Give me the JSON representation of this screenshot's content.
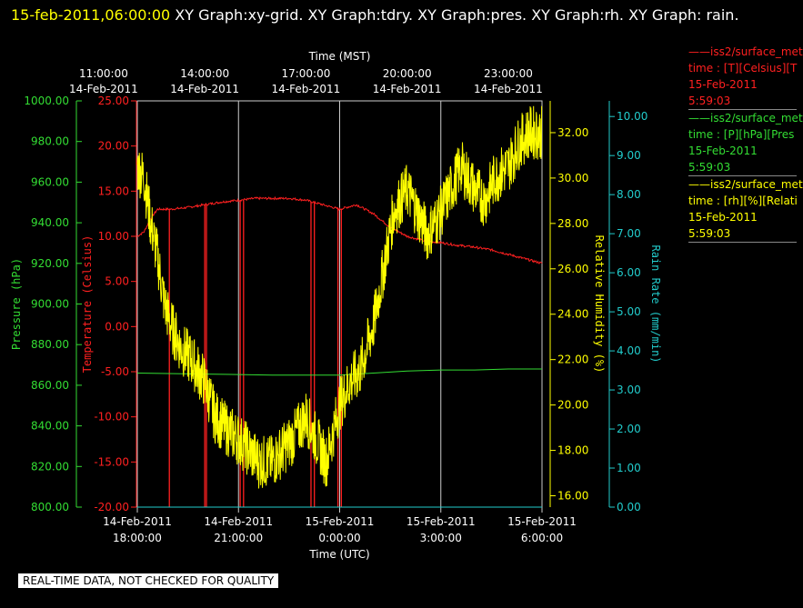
{
  "header": {
    "timestamp": "15-feb-2011,06:00:00",
    "title": "  XY Graph:xy-grid.  XY Graph:tdry.  XY Graph:pres.  XY Graph:rh.  XY Graph: rain."
  },
  "legend": [
    {
      "line1": "——iss2/surface_met",
      "line2": "time : [T][Celsius][T",
      "line3": "15-Feb-2011",
      "line4": "5:59:03",
      "color": "#ff2020"
    },
    {
      "line1": "——iss2/surface_met",
      "line2": "time : [P][hPa][Pres",
      "line3": "15-Feb-2011",
      "line4": "5:59:03",
      "color": "#33dd33"
    },
    {
      "line1": "——iss2/surface_met",
      "line2": "time : [rh][%][Relati",
      "line3": "15-Feb-2011",
      "line4": "5:59:03",
      "color": "#ffff00"
    }
  ],
  "quality_note": "REAL-TIME DATA, NOT CHECKED FOR QUALITY",
  "colors": {
    "temperature": "#ff2020",
    "pressure": "#33dd33",
    "humidity": "#ffff00",
    "rain": "#22cccc",
    "grid": "#cccccc",
    "axis_text": "#ffffff"
  },
  "chart_data": {
    "type": "line",
    "top_axis": {
      "title": "Time (MST)",
      "ticks": [
        {
          "t": 17,
          "time": "11:00:00",
          "date": "14-Feb-2011"
        },
        {
          "t": 20,
          "time": "14:00:00",
          "date": "14-Feb-2011"
        },
        {
          "t": 23,
          "time": "17:00:00",
          "date": "14-Feb-2011"
        },
        {
          "t": 26,
          "time": "20:00:00",
          "date": "14-Feb-2011"
        },
        {
          "t": 29,
          "time": "23:00:00",
          "date": "14-Feb-2011"
        }
      ]
    },
    "bottom_axis": {
      "title": "Time (UTC)",
      "ticks": [
        {
          "t": 18,
          "date": "14-Feb-2011",
          "time": "18:00:00"
        },
        {
          "t": 21,
          "date": "14-Feb-2011",
          "time": "21:00:00"
        },
        {
          "t": 24,
          "date": "15-Feb-2011",
          "time": "0:00:00"
        },
        {
          "t": 27,
          "date": "15-Feb-2011",
          "time": "3:00:00"
        },
        {
          "t": 30,
          "date": "15-Feb-2011",
          "time": "6:00:00"
        }
      ]
    },
    "xlim": [
      18,
      30
    ],
    "y_axes": {
      "pressure": {
        "label": "Pressure (hPa)",
        "ylim": [
          800,
          1000
        ],
        "ticks": [
          "800.00",
          "820.00",
          "840.00",
          "860.00",
          "880.00",
          "900.00",
          "920.00",
          "940.00",
          "960.00",
          "980.00",
          "1000.00"
        ]
      },
      "temperature": {
        "label": "Temperature (Celsius)",
        "ylim": [
          -20,
          25
        ],
        "ticks": [
          "-20.00",
          "-15.00",
          "-10.00",
          "-5.00",
          "0.00",
          "5.00",
          "10.00",
          "15.00",
          "20.00",
          "25.00"
        ]
      },
      "humidity": {
        "label": "Relative Humidity (%)",
        "ylim": [
          15.5,
          33.4
        ],
        "ticks": [
          "16.00",
          "18.00",
          "20.00",
          "22.00",
          "24.00",
          "26.00",
          "28.00",
          "30.00",
          "32.00"
        ]
      },
      "rain": {
        "label": "Rain Rate (mm/min)",
        "ylim": [
          0,
          10.4
        ],
        "ticks": [
          "0.00",
          "1.00",
          "2.00",
          "3.00",
          "4.00",
          "5.00",
          "6.00",
          "7.00",
          "8.00",
          "9.00",
          "10.00"
        ]
      }
    },
    "series": [
      {
        "key": "temperature",
        "x": [
          18.0,
          18.2,
          18.4,
          18.6,
          18.8,
          19.0,
          19.5,
          20.0,
          20.5,
          21.0,
          21.5,
          22.0,
          22.5,
          23.0,
          23.5,
          24.0,
          24.5,
          25.0,
          25.5,
          26.0,
          26.5,
          27.0,
          27.5,
          28.0,
          28.5,
          29.0,
          29.5,
          30.0
        ],
        "values": [
          10.0,
          10.5,
          12.0,
          13.0,
          13.0,
          13.0,
          13.2,
          13.5,
          13.8,
          14.0,
          14.2,
          14.2,
          14.2,
          14.0,
          13.5,
          13.0,
          13.5,
          12.5,
          11.0,
          10.0,
          9.5,
          9.3,
          9.0,
          8.8,
          8.5,
          8.0,
          7.5,
          7.0
        ],
        "drops": [
          18.95,
          20.0,
          20.05,
          21.05,
          21.15,
          23.15,
          23.25,
          23.95,
          24.05
        ]
      },
      {
        "key": "pressure",
        "x": [
          18.0,
          20.0,
          22.0,
          24.0,
          25.0,
          26.0,
          27.0,
          28.0,
          29.0,
          30.0
        ],
        "values": [
          866.0,
          865.5,
          865.0,
          865.0,
          866.0,
          867.0,
          867.5,
          867.5,
          868.0,
          868.0
        ]
      },
      {
        "key": "humidity",
        "x": [
          18.0,
          18.2,
          18.4,
          18.6,
          18.8,
          19.0,
          19.3,
          19.6,
          20.0,
          20.3,
          20.6,
          21.0,
          21.3,
          21.6,
          22.0,
          22.3,
          22.6,
          23.0,
          23.3,
          23.6,
          24.0,
          24.3,
          24.6,
          25.0,
          25.3,
          25.6,
          26.0,
          26.3,
          26.6,
          27.0,
          27.3,
          27.6,
          28.0,
          28.3,
          28.6,
          29.0,
          29.3,
          29.6,
          30.0
        ],
        "values": [
          30.5,
          30.0,
          28.0,
          26.5,
          24.5,
          23.5,
          22.5,
          22.0,
          21.0,
          19.5,
          19.0,
          18.5,
          18.0,
          17.5,
          17.5,
          18.0,
          18.5,
          19.5,
          18.5,
          17.5,
          20.0,
          21.0,
          21.5,
          23.5,
          26.0,
          28.5,
          29.5,
          28.5,
          27.5,
          28.5,
          29.5,
          30.5,
          29.5,
          29.0,
          30.0,
          30.5,
          31.5,
          32.0,
          32.0
        ]
      },
      {
        "key": "rain",
        "x": [
          18.0,
          30.0
        ],
        "values": [
          0.0,
          0.0
        ]
      }
    ]
  }
}
